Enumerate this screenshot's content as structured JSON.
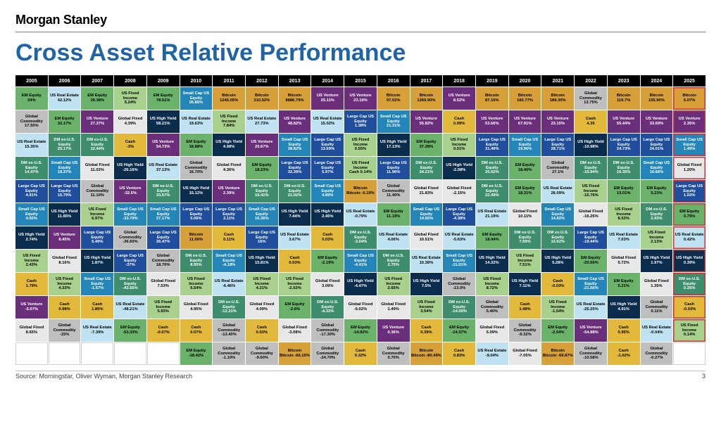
{
  "brand": "Morgan Stanley",
  "title": "Cross Asset Relative Performance",
  "source": "Source: Morningstar, Oliver Wyman, Morgan Stanley Research",
  "pageNumber": "3",
  "years": [
    "2005",
    "2006",
    "2007",
    "2008",
    "2009",
    "2010",
    "2011",
    "2012",
    "2013",
    "2014",
    "2015",
    "2016",
    "2017",
    "2018",
    "2019",
    "2020",
    "2021",
    "2022",
    "2023",
    "2024",
    "2025"
  ],
  "currentYearIndex": 20,
  "colors": {
    "EM Equity": {
      "bg": "#6bb36b",
      "fg": "#000000"
    },
    "US Real Estate": {
      "bg": "#bfe3f2",
      "fg": "#000000"
    },
    "US Fixed Income": {
      "bg": "#a7d18c",
      "fg": "#000000"
    },
    "Global Commodity": {
      "bg": "#bfbfbf",
      "fg": "#000000"
    },
    "DM ex-U.S. Equity": {
      "bg": "#3e8e6e",
      "fg": "#ffffff"
    },
    "Large Cap US Equity": {
      "bg": "#1f4e9c",
      "fg": "#ffffff"
    },
    "Small Cap US Equity": {
      "bg": "#2385b8",
      "fg": "#ffffff"
    },
    "US High Yield": {
      "bg": "#0b2d4d",
      "fg": "#ffffff"
    },
    "US Venture": {
      "bg": "#6a2e7a",
      "fg": "#ffffff"
    },
    "Global Fixed": {
      "bg": "#e8e8e8",
      "fg": "#000000"
    },
    "Cash": {
      "bg": "#e2b93a",
      "fg": "#000000"
    },
    "Bitcoin": {
      "bg": "#d8a038",
      "fg": "#000000"
    },
    "Blank": {
      "bg": "#ffffff",
      "fg": "#ffffff"
    }
  },
  "table": [
    [
      [
        "EM Equity",
        "34%"
      ],
      [
        "US Real Estate",
        "42.12%"
      ],
      [
        "EM Equity",
        "39.38%"
      ],
      [
        "US Fixed Income",
        "5.24%"
      ],
      [
        "EM Equity",
        "78.51%"
      ],
      [
        "Small Cap US Equity",
        "26.85%"
      ],
      [
        "Bitcoin",
        "1245.05%"
      ],
      [
        "Bitcoin",
        "310.52%"
      ],
      [
        "Bitcoin",
        "8886.79%"
      ],
      [
        "US Venture",
        "25.11%"
      ],
      [
        "US Venture",
        "23.19%"
      ],
      [
        "Bitcoin",
        "97.02%"
      ],
      [
        "Bitcoin",
        "1269.90%"
      ],
      [
        "US Venture",
        "8.52%"
      ],
      [
        "Bitcoin",
        "87.10%"
      ],
      [
        "Bitcoin",
        "160.77%"
      ],
      [
        "Bitcoin",
        "189.30%"
      ],
      [
        "Global Commodity",
        "13.75%"
      ],
      [
        "Bitcoin",
        "119.7%"
      ],
      [
        "Bitcoin",
        "155.90%"
      ],
      [
        "Bitcoin",
        "5.07%"
      ]
    ],
    [
      [
        "Global Commodity",
        "17.50%"
      ],
      [
        "EM Equity",
        "32.17%"
      ],
      [
        "US Venture",
        "27.37%"
      ],
      [
        "Global Fixed",
        "4.39%"
      ],
      [
        "US High Yield",
        "58.21%"
      ],
      [
        "US Real Estate",
        "19.63%"
      ],
      [
        "US Fixed Income",
        "7.84%"
      ],
      [
        "US Real Estate",
        "27.73%"
      ],
      [
        "US Venture",
        "48.82%"
      ],
      [
        "US Real Estate",
        "15.02%"
      ],
      [
        "Large Cap US Equity",
        "1.38%"
      ],
      [
        "Small Cap US Equity",
        "21.31%"
      ],
      [
        "US Venture",
        "55.82%"
      ],
      [
        "Cash",
        "0.99%"
      ],
      [
        "US Venture",
        "53.66%"
      ],
      [
        "US Venture",
        "67.91%"
      ],
      [
        "US Venture",
        "23.15%"
      ],
      [
        "Cash",
        "4.35"
      ],
      [
        "US Venture",
        "55.44%"
      ],
      [
        "US Venture",
        "33.69%"
      ],
      [
        "US Venture",
        "2.35%"
      ]
    ],
    [
      [
        "US Real Estate",
        "15.35%"
      ],
      [
        "DM ex-U.S. Equity",
        "25.17%"
      ],
      [
        "DM ex-U.S. Equity",
        "12.44%"
      ],
      [
        "Cash",
        "-3%"
      ],
      [
        "US Venture",
        "54.73%"
      ],
      [
        "EM Equity",
        "18.88%"
      ],
      [
        "US High Yield",
        "4.98%"
      ],
      [
        "US Venture",
        "20.67%"
      ],
      [
        "Small Cap US Equity",
        "38.82%"
      ],
      [
        "Large Cap US Equity",
        "13.69%"
      ],
      [
        "US Fixed Income",
        "0.55%"
      ],
      [
        "US High Yield",
        "17.13%"
      ],
      [
        "EM Equity",
        "37.28%"
      ],
      [
        "US Fixed Income",
        "0.01%"
      ],
      [
        "Large Cap US Equity",
        "31.49%"
      ],
      [
        "Small Cap US Equity",
        "19.96%"
      ],
      [
        "Large Cap US Equity",
        "28.71%"
      ],
      [
        "US High Yield",
        "-10.98%"
      ],
      [
        "Large Cap US Equity",
        "24.73%"
      ],
      [
        "Large Cap US Equity",
        "24.01%"
      ],
      [
        "Small Cap US Equity",
        "1.49%"
      ]
    ],
    [
      [
        "DM ex-U.S. Equity",
        "14.47%"
      ],
      [
        "Small Cap US Equity",
        "18.37%"
      ],
      [
        "Global Fixed",
        "11.03%"
      ],
      [
        "US High Yield",
        "-26.16%"
      ],
      [
        "US Real Estate",
        "37.13%"
      ],
      [
        "Global Commodity",
        "16.70%"
      ],
      [
        "Global Fixed",
        "4.36%"
      ],
      [
        "EM Equity",
        "18.23%"
      ],
      [
        "Large Cap US Equity",
        "32.39%"
      ],
      [
        "Large Cap US Equity",
        "5.97%"
      ],
      [
        "US Fixed Income",
        "Cash 0.14%"
      ],
      [
        "Large Cap US Equity",
        "11.96%"
      ],
      [
        "DM ex-U.S. Equity",
        "24.21%"
      ],
      [
        "US High Yield",
        "-2.08%"
      ],
      [
        "DM ex-U.S. Equity",
        "25.52%"
      ],
      [
        "EM Equity",
        "18.40%"
      ],
      [
        "Global Commodity",
        "27.1%"
      ],
      [
        "DM ex-U.S. Equity",
        "-15.94%"
      ],
      [
        "DM ex-U.S. Equity",
        "16.35%"
      ],
      [
        "Small Cap US Equity",
        "10.66%"
      ],
      [
        "Global Fixed",
        "1.20%"
      ]
    ],
    [
      [
        "Large Cap US Equity",
        "4.91%"
      ],
      [
        "Large Cap US Equity",
        "15.79%"
      ],
      [
        "Global Commodity",
        "11.10%"
      ],
      [
        "US Venture",
        "-32.6%"
      ],
      [
        "DM ex-U.S. Equity",
        "33.67%"
      ],
      [
        "US High Yield",
        "15.12%"
      ],
      [
        "US Venture",
        "2.39%"
      ],
      [
        "DM ex-U.S. Equity",
        "16.41%"
      ],
      [
        "DM ex-U.S. Equity",
        "21.02%"
      ],
      [
        "Small Cap US Equity",
        "4.89%"
      ],
      [
        "Bitcoin",
        "Bitcoin -0.19%"
      ],
      [
        "Global Commodity",
        "11.40%"
      ],
      [
        "Global Fixed",
        "21.83%"
      ],
      [
        "Global Fixed",
        "-2.15%"
      ],
      [
        "DM ex-U.S. Equity",
        "22.49%"
      ],
      [
        "EM Equity",
        "18.31%"
      ],
      [
        "US Real Estate",
        "26.09%"
      ],
      [
        "US Fixed Income",
        "-15.76%"
      ],
      [
        "EM Equity",
        "13.01%"
      ],
      [
        "EM Equity",
        "5.23%"
      ],
      [
        "Large Cap US Equity",
        "1.03%"
      ]
    ],
    [
      [
        "Small Cap US Equity",
        "4.55%"
      ],
      [
        "US High Yield",
        "11.85%"
      ],
      [
        "US Fixed Income",
        "6.97%"
      ],
      [
        "Small Cap US Equity",
        "-33.79%"
      ],
      [
        "Small Cap US Equity",
        "27.17%"
      ],
      [
        "Large Cap US Equity",
        "5.06%"
      ],
      [
        "Large Cap US Equity",
        "2.11%"
      ],
      [
        "Small Cap US Equity",
        "16.35%"
      ],
      [
        "US High Yield",
        "7.44%"
      ],
      [
        "US High Yield",
        "2.45%"
      ],
      [
        "US Real Estate",
        "-0.79%"
      ],
      [
        "EM Equity",
        "11.19%"
      ],
      [
        "Small Cap US Equity",
        "14.65%"
      ],
      [
        "Large Cap US Equity",
        "-4.38%"
      ],
      [
        "US Real Estate",
        "21.19%"
      ],
      [
        "Global Fixed",
        "10.11%"
      ],
      [
        "Small Cap US Equity",
        "14.82%"
      ],
      [
        "Global Fixed",
        "-16.25%"
      ],
      [
        "US Fixed Income",
        "8.53%"
      ],
      [
        "DM ex-U.S. Equity",
        "2.43%"
      ],
      [
        "EM Equity",
        "0.79%"
      ]
    ],
    [
      [
        "US High Yield",
        "2.74%"
      ],
      [
        "US Venture",
        "8.45%"
      ],
      [
        "Large Cap US Equity",
        "5.49%"
      ],
      [
        "Global Commodity",
        "-36.60%"
      ],
      [
        "Large Cap US Equity",
        "26.47%"
      ],
      [
        "Bitcoin",
        "11.06%"
      ],
      [
        "Cash",
        "0.11%"
      ],
      [
        "Large Cap US Equity",
        "16%"
      ],
      [
        "US Real Estate",
        "3.67%"
      ],
      [
        "Cash",
        "0.03%"
      ],
      [
        "DM ex-U.S. Equity",
        "-3.04%"
      ],
      [
        "US Real Estate",
        "4.06%"
      ],
      [
        "Global Fixed",
        "10.51%"
      ],
      [
        "US Real Estate",
        "-5.63%"
      ],
      [
        "EM Equity",
        "18.44%"
      ],
      [
        "DM ex-U.S. Equity",
        "7.59%"
      ],
      [
        "DM ex-U.S. Equity",
        "12.62%"
      ],
      [
        "Large Cap US Equity",
        "-19.44%"
      ],
      [
        "US Real Estate",
        "7.03%"
      ],
      [
        "US Fixed Income",
        "2.13%"
      ],
      [
        "US Real Estate",
        "0.42%"
      ]
    ],
    [
      [
        "US Fixed Income",
        "2.43%"
      ],
      [
        "Global Fixed",
        "8.16%"
      ],
      [
        "US High Yield",
        "1.87%"
      ],
      [
        "Large Cap US Equity",
        "-37%"
      ],
      [
        "Global Commodity",
        "18.70%"
      ],
      [
        "DM ex-U.S. Equity",
        "8.95%"
      ],
      [
        "Small Cap US Equity",
        "-4.18%"
      ],
      [
        "US High Yield",
        "15.81%"
      ],
      [
        "Cash",
        "0.03%"
      ],
      [
        "EM Equity",
        "-2.19%"
      ],
      [
        "Small Cap US Equity",
        "-4.41%"
      ],
      [
        "DM ex-U.S. Equity",
        "2.75%"
      ],
      [
        "US Real Estate",
        "10.36%"
      ],
      [
        "Small Cap US Equity",
        "-11.01%"
      ],
      [
        "US High Yield",
        "14.32%"
      ],
      [
        "US Fixed Income",
        "7.51%"
      ],
      [
        "US High Yield",
        "5.28%"
      ],
      [
        "EM Equity",
        "-20.56%"
      ],
      [
        "Global Fixed",
        "5.72%"
      ],
      [
        "US High Yield",
        "1.97%"
      ],
      [
        "US High Yield",
        "0.39%"
      ]
    ],
    [
      [
        "Cash",
        "1.79%"
      ],
      [
        "US Fixed Income",
        "4.33%"
      ],
      [
        "Small Cap US Equity",
        "-1.57%"
      ],
      [
        "DM ex-U.S. Equity",
        "-43.56%"
      ],
      [
        "Global Fixed",
        "7.53%"
      ],
      [
        "US Fixed Income",
        "6.54%"
      ],
      [
        "US Real Estate",
        "-6.46%"
      ],
      [
        "US Fixed Income",
        "4.21%"
      ],
      [
        "US Fixed Income",
        "-2.02%"
      ],
      [
        "Global Fixed",
        "3.09%"
      ],
      [
        "US High Yield",
        "-4.47%"
      ],
      [
        "US Fixed Income",
        "2.65%"
      ],
      [
        "US High Yield",
        "7.5%"
      ],
      [
        "Global Commodity",
        "-13.0%"
      ],
      [
        "US Fixed Income",
        "8.72%"
      ],
      [
        "US High Yield",
        "7.11%"
      ],
      [
        "Cash",
        "-0.03%"
      ],
      [
        "Small Cap US Equity",
        "-21.56%"
      ],
      [
        "EM Equity",
        "5.21%"
      ],
      [
        "Global Fixed",
        "1.35%"
      ],
      [
        "DM ex-U.S. Equity",
        "0.25%"
      ]
    ],
    [
      [
        "US Venture",
        "-5.07%"
      ],
      [
        "Cash",
        "0.98%"
      ],
      [
        "Cash",
        "1.85%"
      ],
      [
        "US Real Estate",
        "-48.21%"
      ],
      [
        "US Fixed Income",
        "5.93%"
      ],
      [
        "Global Fixed",
        "4.95%"
      ],
      [
        "DM ex-U.S. Equity",
        "-12.21%"
      ],
      [
        "Global Fixed",
        "4.09%"
      ],
      [
        "EM Equity",
        "-2.6%"
      ],
      [
        "DM ex-U.S. Equity",
        "-4.32%"
      ],
      [
        "Global Fixed",
        "-6.02%"
      ],
      [
        "Global Fixed",
        "1.49%"
      ],
      [
        "US Fixed Income",
        "3.54%"
      ],
      [
        "DM ex-U.S. Equity",
        "-14.09%"
      ],
      [
        "Global Commodity",
        "5.40%"
      ],
      [
        "Cash",
        "1.48%"
      ],
      [
        "US Fixed Income",
        "-1.54%"
      ],
      [
        "US Real Estate",
        "-26.25%"
      ],
      [
        "US High Yield",
        "4.91%"
      ],
      [
        "Global Commodity",
        "0.11%"
      ],
      [
        "Cash",
        "-0.03%"
      ]
    ],
    [
      [
        "Global Fixed",
        "8.65%"
      ],
      [
        "Global Commodity",
        "-15%"
      ],
      [
        "US Real Estate",
        "-7.39%"
      ],
      [
        "EM Equity",
        "-53.33%"
      ],
      [
        "Cash",
        "-0.07%"
      ],
      [
        "Cash",
        "0.07%"
      ],
      [
        "Global Commodity",
        "-13.40%"
      ],
      [
        "Cash",
        "0.03%"
      ],
      [
        "Global Fixed",
        "-3.08%"
      ],
      [
        "Global Commodity",
        "-17.30%"
      ],
      [
        "EM Equity",
        "-14.92%"
      ],
      [
        "US Venture",
        "0.36%"
      ],
      [
        "Cash",
        "0.39%"
      ],
      [
        "EM Equity",
        "-14.57%"
      ],
      [
        "Global Fixed",
        "5.09%"
      ],
      [
        "Global Commodity",
        "-9.32%"
      ],
      [
        "EM Equity",
        "-2.54%"
      ],
      [
        "US Venture",
        "-54.88%"
      ],
      [
        "Cash",
        "0.95%"
      ],
      [
        "US Real Estate",
        "-0.04%"
      ],
      [
        "US Fixed Income",
        "0.14%"
      ]
    ],
    [
      [
        "Blank",
        ""
      ],
      [
        "Blank",
        ""
      ],
      [
        "Blank",
        ""
      ],
      [
        "Blank",
        ""
      ],
      [
        "Blank",
        ""
      ],
      [
        "EM Equity",
        "-18.42%"
      ],
      [
        "Global Commodity",
        "-1.10%"
      ],
      [
        "Global Commodity",
        "-9.60%"
      ],
      [
        "Bitcoin",
        "Bitcoin -66.15%"
      ],
      [
        "Global Commodity",
        "-24.70%"
      ],
      [
        "Cash",
        "0.32%"
      ],
      [
        "Global Commodity",
        "0.70%"
      ],
      [
        "Bitcoin",
        "Bitcoin -80.49%"
      ],
      [
        "Cash",
        "0.83%"
      ],
      [
        "US Real Estate",
        "-9.04%"
      ],
      [
        "Global Fixed",
        "-7.05%"
      ],
      [
        "Bitcoin",
        "Bitcoin -69.87%"
      ],
      [
        "Global Commodity",
        "-10.58%"
      ],
      [
        "Cash",
        "-1.02%"
      ],
      [
        "Global Commodity",
        "-0.27%"
      ],
      [
        "Blank",
        ""
      ]
    ]
  ]
}
